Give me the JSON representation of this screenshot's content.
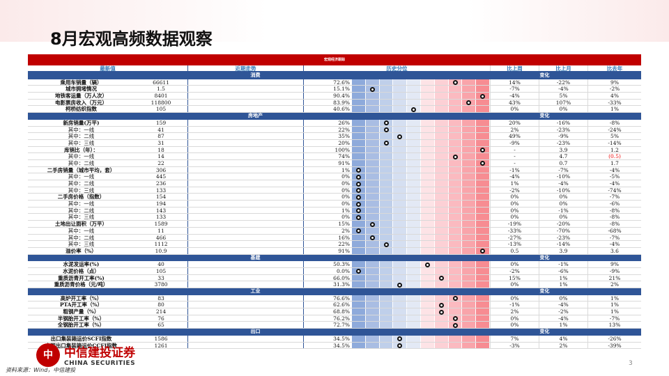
{
  "title": "8月宏观高频数据观察",
  "table_title": "宏观经济跟踪",
  "headers": {
    "latest": "最新值",
    "trend": "近期走势",
    "percentile": "历史分位",
    "wow": "比上周",
    "mom": "比上月",
    "yoy": "比去年"
  },
  "change_label": "变化",
  "sections": [
    {
      "name": "消费",
      "rows": [
        [
          "乘用车销量（辆）",
          "66611",
          "72.6%",
          72.6,
          "14%",
          "-22%",
          "9%",
          0
        ],
        [
          "城市拥堵情况",
          "1.5",
          "15.1%",
          15.1,
          "-7%",
          "-4%",
          "-2%",
          0
        ],
        [
          "地铁客运量（万人次）",
          "8401",
          "90.4%",
          90.4,
          "-4%",
          "5%",
          "4%",
          0
        ],
        [
          "电影票房收入（万元）",
          "118800",
          "83.9%",
          83.9,
          "43%",
          "107%",
          "-33%",
          0
        ],
        [
          "柯桥纺织指数",
          "105",
          "40.6%",
          40.6,
          "0%",
          "0%",
          "1%",
          0
        ]
      ]
    },
    {
      "name": "房地产",
      "rows": [
        [
          "新房销量(万平)",
          "159",
          "26%",
          26,
          "20%",
          "-16%",
          "-8%",
          0
        ],
        [
          "其中：一线",
          "41",
          "22%",
          22,
          "2%",
          "-23%",
          "-24%",
          1
        ],
        [
          "其中：二线",
          "87",
          "35%",
          35,
          "49%",
          "-9%",
          "5%",
          1
        ],
        [
          "其中：三线",
          "31",
          "20%",
          20,
          "-9%",
          "-23%",
          "-14%",
          1
        ],
        [
          "库销比（年）：",
          "18",
          "100%",
          100,
          "-",
          "3.9",
          "1.2",
          0
        ],
        [
          "其中：一线",
          "14",
          "74%",
          74,
          "-",
          "4.7",
          "(0.5)",
          1
        ],
        [
          "其中：二线",
          "22",
          "91%",
          91,
          "-",
          "0.7",
          "1.7",
          1
        ],
        [
          "二手房销量（城市平均，套）",
          "306",
          "1%",
          1,
          "-1%",
          "-7%",
          "-4%",
          0
        ],
        [
          "其中：一线",
          "445",
          "0%",
          0,
          "-4%",
          "-10%",
          "-5%",
          1
        ],
        [
          "其中：二线",
          "236",
          "0%",
          0,
          "1%",
          "-4%",
          "-4%",
          1
        ],
        [
          "其中：三线",
          "133",
          "0%",
          0,
          "-2%",
          "-10%",
          "-74%",
          1
        ],
        [
          "二手房价格（指数）",
          "154",
          "0%",
          0,
          "0%",
          "0%",
          "-7%",
          0
        ],
        [
          "其中：一线",
          "194",
          "0%",
          0,
          "0%",
          "0%",
          "-6%",
          1
        ],
        [
          "其中：二线",
          "143",
          "1%",
          1,
          "0%",
          "-1%",
          "-8%",
          1
        ],
        [
          "其中：三线",
          "133",
          "0%",
          0,
          "0%",
          "0%",
          "-8%",
          1
        ],
        [
          "土地出让面积（万平）",
          "1589",
          "15%",
          15,
          "-19%",
          "-20%",
          "-8%",
          0
        ],
        [
          "其中：一线",
          "11",
          "2%",
          2,
          "-33%",
          "-70%",
          "-68%",
          1
        ],
        [
          "其中：二线",
          "466",
          "16%",
          16,
          "-27%",
          "-23%",
          "-7%",
          1
        ],
        [
          "其中：三线",
          "1112",
          "22%",
          22,
          "-13%",
          "-14%",
          "-4%",
          1
        ],
        [
          "溢价率（%）",
          "10.9",
          "91%",
          91,
          "0.5",
          "3.9",
          "3.6",
          0
        ]
      ]
    },
    {
      "name": "基建",
      "rows": [
        [
          "水泥发运率(%)",
          "40",
          "50.3%",
          50.3,
          "0%",
          "-1%",
          "9%",
          0
        ],
        [
          "水泥价格（点）",
          "105",
          "0.0%",
          0,
          "-2%",
          "-6%",
          "-9%",
          0
        ],
        [
          "重质沥青开工率(%)",
          "33",
          "66.0%",
          66,
          "15%",
          "1%",
          "21%",
          0
        ],
        [
          "重质沥青价格（元/吨）",
          "3780",
          "31.3%",
          31.3,
          "0%",
          "1%",
          "2%",
          0
        ]
      ]
    },
    {
      "name": "工业",
      "rows": [
        [
          "高炉开工率（%）",
          "83",
          "76.6%",
          76.6,
          "0%",
          "0%",
          "1%",
          0
        ],
        [
          "PTA开工率（%）",
          "80",
          "62.6%",
          62.6,
          "-1%",
          "-4%",
          "1%",
          0
        ],
        [
          "粗钢产量（%）",
          "214",
          "68.8%",
          68.8,
          "2%",
          "-2%",
          "1%",
          0
        ],
        [
          "半钢胎开工率（%）",
          "76",
          "76.2%",
          76.2,
          "0%",
          "-4%",
          "-7%",
          0
        ],
        [
          "全钢胎开工率（%）",
          "65",
          "72.7%",
          72.7,
          "0%",
          "1%",
          "13%",
          0
        ]
      ]
    },
    {
      "name": "出口",
      "rows": [
        [
          "出口集装箱运价SCFI指数",
          "1586",
          "34.5%",
          34.5,
          "7%",
          "4%",
          "-26%",
          0
        ],
        [
          "中国出口集装箱运价CCFI指数",
          "1261",
          "34.5%",
          34.5,
          "-3%",
          "2%",
          "-39%",
          0
        ]
      ]
    }
  ],
  "heat_colors": [
    "#8eaadb",
    "#a9bde3",
    "#bfcfea",
    "#d5dff1",
    "#e3e9f5",
    "#fde3e6",
    "#fcd0d5",
    "#fbbac0",
    "#f9a4aa",
    "#f78c92"
  ],
  "footer": {
    "logo_cn": "中信建投证券",
    "logo_en": "CHINA SECURITIES",
    "source": "资料来源：Wind，中信建投",
    "page": "3"
  }
}
